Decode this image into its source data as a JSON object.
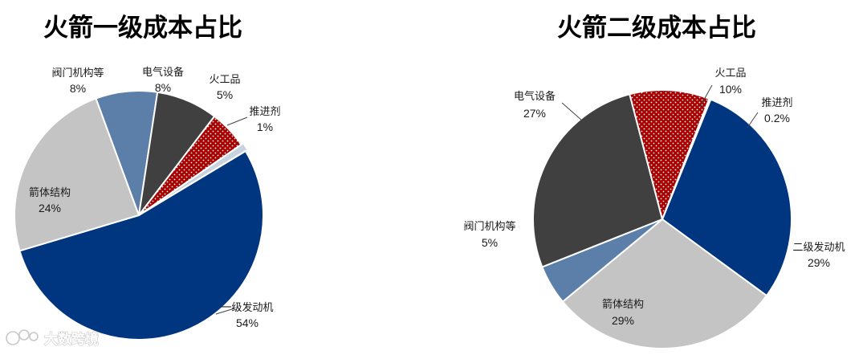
{
  "chart_data": [
    {
      "type": "pie",
      "title": "火箭一级成本占比",
      "slices": [
        {
          "label": "一级发动机",
          "value": 54,
          "value_text": "54%",
          "color": "#003580",
          "pattern": "solid"
        },
        {
          "label": "箭体结构",
          "value": 24,
          "value_text": "24%",
          "color": "#c4c4c4",
          "pattern": "solid"
        },
        {
          "label": "阀门机构等",
          "value": 8,
          "value_text": "8%",
          "color": "#5b7fa8",
          "pattern": "solid"
        },
        {
          "label": "电气设备",
          "value": 8,
          "value_text": "8%",
          "color": "#404040",
          "pattern": "solid"
        },
        {
          "label": "火工品",
          "value": 5,
          "value_text": "5%",
          "color": "#a80000",
          "pattern": "dotted"
        },
        {
          "label": "推进剂",
          "value": 1,
          "value_text": "1%",
          "color": "#c8d3e0",
          "pattern": "solid"
        }
      ]
    },
    {
      "type": "pie",
      "title": "火箭二级成本占比",
      "slices": [
        {
          "label": "二级发动机",
          "value": 29,
          "value_text": "29%",
          "color": "#003580",
          "pattern": "solid"
        },
        {
          "label": "箭体结构",
          "value": 29,
          "value_text": "29%",
          "color": "#c4c4c4",
          "pattern": "solid"
        },
        {
          "label": "阀门机构等",
          "value": 5,
          "value_text": "5%",
          "color": "#5b7fa8",
          "pattern": "solid"
        },
        {
          "label": "电气设备",
          "value": 27,
          "value_text": "27%",
          "color": "#404040",
          "pattern": "solid"
        },
        {
          "label": "火工品",
          "value": 10,
          "value_text": "10%",
          "color": "#a80000",
          "pattern": "dotted"
        },
        {
          "label": "推进剂",
          "value": 0.2,
          "value_text": "0.2%",
          "color": "#c8d3e0",
          "pattern": "solid"
        }
      ]
    }
  ],
  "watermark": {
    "text": "大数跨境"
  }
}
